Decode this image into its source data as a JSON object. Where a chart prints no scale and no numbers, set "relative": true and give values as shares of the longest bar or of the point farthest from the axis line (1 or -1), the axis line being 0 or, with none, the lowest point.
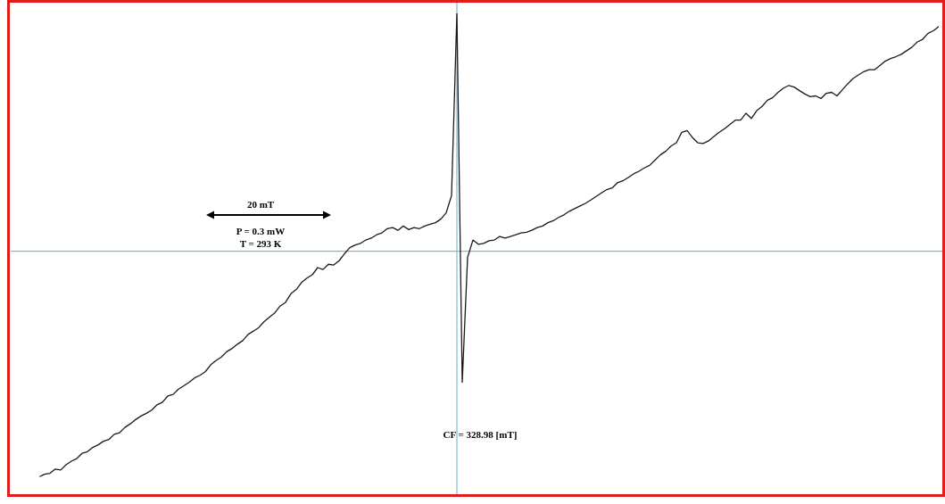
{
  "chart_data": {
    "type": "line",
    "relative": true,
    "legend": false,
    "marker": "none",
    "line_style": "solid",
    "categories": [
      null,
      null,
      null,
      null,
      null,
      null,
      null,
      null,
      null,
      null,
      null,
      null,
      null,
      null,
      null,
      null,
      null,
      null,
      null,
      null,
      null,
      null,
      null,
      null,
      null,
      null,
      null,
      null,
      null,
      null,
      null,
      null,
      null,
      null,
      null,
      null,
      null,
      null,
      null,
      null,
      null,
      null,
      null,
      null,
      null,
      null,
      null,
      null,
      null,
      null,
      null,
      null,
      null,
      null,
      null,
      null,
      null,
      null,
      null,
      null,
      null,
      null,
      null,
      null,
      null,
      null,
      null,
      null,
      null,
      null,
      null,
      null,
      null,
      null,
      null,
      null,
      null,
      null,
      null,
      null,
      null,
      null,
      null,
      null,
      null,
      null,
      null,
      null,
      null,
      null,
      null,
      null,
      null,
      null,
      null,
      null,
      null,
      null,
      null,
      null,
      null,
      null,
      null,
      null,
      null,
      null,
      null,
      null,
      null,
      null,
      null,
      null,
      null,
      null,
      null,
      null,
      null,
      null,
      null,
      null,
      null,
      null,
      null,
      null,
      null,
      null,
      null,
      null,
      null,
      null,
      null,
      null,
      null,
      null,
      null,
      null,
      null,
      null,
      null,
      null,
      null,
      null,
      null,
      null,
      null,
      null,
      null,
      null,
      null,
      null,
      null,
      null,
      null,
      null,
      null,
      null,
      null,
      null,
      null,
      null,
      null,
      null,
      null,
      null,
      null,
      null,
      null,
      null,
      null
    ],
    "series": [
      {
        "color": "#1a1a1a",
        "values": [
          -0.949,
          -0.938,
          -0.934,
          -0.916,
          -0.92,
          -0.898,
          -0.883,
          -0.872,
          -0.85,
          -0.843,
          -0.825,
          -0.814,
          -0.799,
          -0.792,
          -0.77,
          -0.763,
          -0.741,
          -0.726,
          -0.708,
          -0.693,
          -0.682,
          -0.668,
          -0.646,
          -0.635,
          -0.609,
          -0.602,
          -0.58,
          -0.566,
          -0.551,
          -0.533,
          -0.522,
          -0.507,
          -0.478,
          -0.46,
          -0.445,
          -0.423,
          -0.409,
          -0.391,
          -0.376,
          -0.35,
          -0.336,
          -0.321,
          -0.296,
          -0.277,
          -0.259,
          -0.23,
          -0.215,
          -0.179,
          -0.161,
          -0.131,
          -0.113,
          -0.099,
          -0.069,
          -0.077,
          -0.055,
          -0.058,
          -0.04,
          -0.011,
          0.015,
          0.026,
          0.033,
          0.047,
          0.055,
          0.069,
          0.077,
          0.095,
          0.099,
          0.088,
          0.106,
          0.091,
          0.099,
          0.095,
          0.106,
          0.113,
          0.12,
          0.135,
          0.161,
          0.234,
          1.0,
          -0.551,
          -0.026,
          0.047,
          0.029,
          0.033,
          0.044,
          0.047,
          0.062,
          0.055,
          0.062,
          0.069,
          0.077,
          0.08,
          0.088,
          0.099,
          0.106,
          0.12,
          0.128,
          0.142,
          0.153,
          0.168,
          0.179,
          0.19,
          0.201,
          0.215,
          0.23,
          0.245,
          0.259,
          0.266,
          0.288,
          0.296,
          0.31,
          0.325,
          0.336,
          0.35,
          0.361,
          0.383,
          0.405,
          0.42,
          0.442,
          0.456,
          0.5,
          0.507,
          0.478,
          0.456,
          0.453,
          0.464,
          0.482,
          0.5,
          0.515,
          0.533,
          0.551,
          0.551,
          0.58,
          0.558,
          0.591,
          0.609,
          0.635,
          0.646,
          0.668,
          0.686,
          0.697,
          0.69,
          0.675,
          0.661,
          0.65,
          0.653,
          0.642,
          0.664,
          0.668,
          0.653,
          0.679,
          0.704,
          0.726,
          0.741,
          0.755,
          0.763,
          0.763,
          0.781,
          0.799,
          0.81,
          0.818,
          0.828,
          0.843,
          0.858,
          0.88,
          0.891,
          0.916,
          0.927,
          0.945
        ]
      }
    ],
    "ref_lines": [
      {
        "axis": "y",
        "value": 0,
        "color": "#7fb8d8"
      }
    ],
    "annotations": [
      "20 mT",
      "P = 0.3 mW",
      "T = 293 K",
      "CF = 328.98 [mT]"
    ]
  }
}
